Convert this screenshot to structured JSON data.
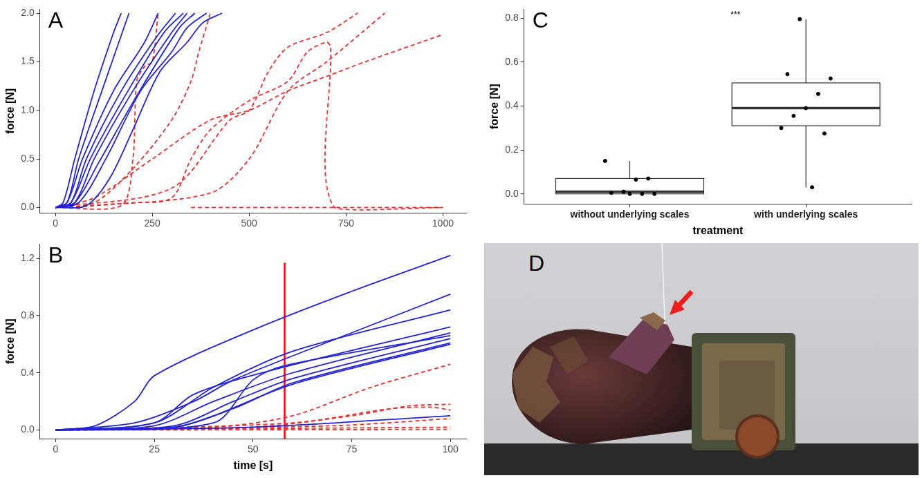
{
  "chart_data": [
    {
      "panel": "A",
      "type": "line",
      "y_label": "force [N]",
      "grid": false,
      "tick_labels": true,
      "xlim": [
        -40,
        1060
      ],
      "xticks": [
        0,
        250,
        500,
        750,
        1000
      ],
      "ylim": [
        -0.055,
        2.04
      ],
      "yticks": [
        {
          "value": 0,
          "label": "0.0"
        },
        0.5,
        {
          "value": 1,
          "label": "1.0"
        },
        1.5,
        {
          "value": 2,
          "label": "2.0"
        }
      ],
      "series": [
        {
          "color": "#2323d6",
          "line_style": "solid",
          "x": [
            0,
            20,
            50,
            100,
            150,
            170
          ],
          "values": [
            0,
            0.05,
            0.5,
            1.2,
            1.8,
            2.0
          ]
        },
        {
          "color": "#2323d6",
          "line_style": "solid",
          "x": [
            0,
            30,
            60,
            120,
            190
          ],
          "values": [
            0,
            0.05,
            0.5,
            1.2,
            2.0
          ]
        },
        {
          "color": "#2323d6",
          "line_style": "solid",
          "x": [
            0,
            30,
            70,
            150,
            230,
            265
          ],
          "values": [
            0,
            0.05,
            0.5,
            1.2,
            1.7,
            2.0
          ]
        },
        {
          "color": "#2323d6",
          "line_style": "solid",
          "x": [
            0,
            40,
            80,
            170,
            260,
            310
          ],
          "values": [
            0,
            0.05,
            0.5,
            1.2,
            1.75,
            2.0
          ]
        },
        {
          "color": "#2323d6",
          "line_style": "solid",
          "x": [
            0,
            40,
            90,
            180,
            280,
            330
          ],
          "values": [
            0,
            0.05,
            0.5,
            1.15,
            1.8,
            2.0
          ]
        },
        {
          "color": "#2323d6",
          "line_style": "solid",
          "x": [
            0,
            50,
            100,
            200,
            300,
            340
          ],
          "values": [
            0,
            0.05,
            0.5,
            1.2,
            1.8,
            2.0
          ]
        },
        {
          "color": "#2323d6",
          "line_style": "solid",
          "x": [
            0,
            50,
            110,
            210,
            320,
            360
          ],
          "values": [
            0,
            0.05,
            0.45,
            1.15,
            1.85,
            2.0
          ]
        },
        {
          "color": "#2323d6",
          "line_style": "solid",
          "x": [
            0,
            60,
            130,
            220,
            300,
            340,
            390
          ],
          "values": [
            0,
            0.05,
            0.5,
            1.2,
            1.6,
            1.85,
            2.0
          ]
        },
        {
          "color": "#2323d6",
          "line_style": "solid",
          "x": [
            0,
            80,
            140,
            200,
            270,
            340,
            380,
            430
          ],
          "values": [
            0,
            0.02,
            0.3,
            0.8,
            1.4,
            1.7,
            1.9,
            2.0
          ]
        },
        {
          "color": "#e8312f",
          "line_style": "dashed",
          "x": [
            0,
            170,
            200,
            210,
            230,
            250,
            265
          ],
          "values": [
            0,
            0.02,
            0.5,
            1.3,
            1.45,
            1.5,
            2.0
          ]
        },
        {
          "color": "#e8312f",
          "line_style": "dashed",
          "x": [
            0,
            100,
            200,
            300,
            350,
            370,
            400
          ],
          "values": [
            0,
            0.05,
            0.4,
            0.9,
            1.3,
            1.6,
            2.0
          ]
        },
        {
          "color": "#e8312f",
          "line_style": "dashed",
          "x": [
            0,
            100,
            250,
            400,
            500,
            600,
            700,
            800,
            1000
          ],
          "values": [
            0,
            0.1,
            0.5,
            0.9,
            1.0,
            1.2,
            1.35,
            1.5,
            1.78
          ]
        },
        {
          "color": "#e8312f",
          "line_style": "dashed",
          "x": [
            0,
            200,
            300,
            350,
            400,
            500,
            600,
            650,
            700,
            710,
            720,
            1000
          ],
          "values": [
            0,
            0.05,
            0.1,
            0.5,
            0.8,
            1.1,
            1.3,
            1.6,
            1.7,
            1.65,
            0,
            0
          ]
        },
        {
          "color": "#e8312f",
          "line_style": "dashed",
          "x": [
            0,
            300,
            450,
            500,
            550,
            600,
            700,
            780
          ],
          "values": [
            0,
            0.2,
            0.9,
            1.0,
            1.4,
            1.65,
            1.8,
            2.0
          ]
        },
        {
          "color": "#e8312f",
          "line_style": "dashed",
          "x": [
            0,
            100,
            400,
            500,
            600,
            700,
            850
          ],
          "values": [
            0,
            0.02,
            0.15,
            0.5,
            1.2,
            1.5,
            2.0
          ]
        },
        {
          "color": "#e8312f",
          "line_style": "dashed",
          "x": [
            350,
            1000
          ],
          "values": [
            0,
            0
          ]
        }
      ]
    },
    {
      "panel": "B",
      "type": "line",
      "x_label": "time [s]",
      "y_label": "force [N]",
      "grid": false,
      "tick_labels": true,
      "xlim": [
        -4,
        104
      ],
      "xticks": [
        0,
        25,
        50,
        75,
        100
      ],
      "ylim": [
        -0.06,
        1.3
      ],
      "yticks": [
        {
          "value": 0,
          "label": "0.0"
        },
        0.4,
        0.8,
        1.2
      ],
      "vline": {
        "x": 58,
        "ylim": [
          -0.06,
          1.17
        ],
        "color": "#ff0000",
        "line_style": "solid"
      },
      "series": [
        {
          "color": "#2323d6",
          "line_style": "solid",
          "x": [
            0,
            10,
            20,
            25,
            50,
            75,
            100
          ],
          "values": [
            0,
            0.03,
            0.2,
            0.38,
            0.7,
            0.97,
            1.22
          ]
        },
        {
          "color": "#2323d6",
          "line_style": "solid",
          "x": [
            0,
            20,
            35,
            45,
            75,
            100
          ],
          "values": [
            0,
            0.05,
            0.2,
            0.35,
            0.68,
            0.95
          ]
        },
        {
          "color": "#2323d6",
          "line_style": "solid",
          "x": [
            0,
            25,
            40,
            60,
            100
          ],
          "values": [
            0,
            0.05,
            0.3,
            0.55,
            0.84
          ]
        },
        {
          "color": "#2323d6",
          "line_style": "solid",
          "x": [
            0,
            25,
            35,
            55,
            100
          ],
          "values": [
            0,
            0.05,
            0.25,
            0.42,
            0.72
          ]
        },
        {
          "color": "#2323d6",
          "line_style": "solid",
          "x": [
            0,
            25,
            40,
            60,
            100
          ],
          "values": [
            0,
            0.03,
            0.2,
            0.4,
            0.68
          ]
        },
        {
          "color": "#2323d6",
          "line_style": "solid",
          "x": [
            0,
            30,
            45,
            60,
            100
          ],
          "values": [
            0,
            0.03,
            0.2,
            0.36,
            0.64
          ]
        },
        {
          "color": "#2323d6",
          "line_style": "solid",
          "x": [
            0,
            30,
            45,
            60,
            100
          ],
          "values": [
            0,
            0.02,
            0.15,
            0.33,
            0.61
          ]
        },
        {
          "color": "#2323d6",
          "line_style": "solid",
          "x": [
            0,
            30,
            40,
            60,
            100
          ],
          "values": [
            0,
            0.02,
            0.1,
            0.32,
            0.6
          ]
        },
        {
          "color": "#2323d6",
          "line_style": "solid",
          "x": [
            0,
            40,
            50,
            58,
            100
          ],
          "values": [
            0,
            0.05,
            0.35,
            0.45,
            0.66
          ]
        },
        {
          "color": "#2323d6",
          "line_style": "solid",
          "x": [
            0,
            50,
            100
          ],
          "values": [
            0,
            0.02,
            0.1
          ]
        },
        {
          "color": "#e8312f",
          "line_style": "dashed",
          "x": [
            0,
            40,
            60,
            80,
            100
          ],
          "values": [
            0,
            0.02,
            0.1,
            0.3,
            0.46
          ]
        },
        {
          "color": "#e8312f",
          "line_style": "dashed",
          "x": [
            0,
            50,
            75,
            90,
            100
          ],
          "values": [
            0,
            0.02,
            0.1,
            0.17,
            0.18
          ]
        },
        {
          "color": "#e8312f",
          "line_style": "dashed",
          "x": [
            0,
            60,
            85,
            95,
            100
          ],
          "values": [
            0,
            0.05,
            0.15,
            0.16,
            0.14
          ]
        },
        {
          "color": "#e8312f",
          "line_style": "dashed",
          "x": [
            0,
            70,
            100
          ],
          "values": [
            0,
            0.03,
            0.08
          ]
        },
        {
          "color": "#e8312f",
          "line_style": "dashed",
          "x": [
            0,
            100
          ],
          "values": [
            0,
            0.02
          ]
        },
        {
          "color": "#e8312f",
          "line_style": "dashed",
          "x": [
            0,
            100
          ],
          "values": [
            0,
            0.005
          ]
        }
      ]
    },
    {
      "panel": "C",
      "type": "box",
      "x_label": "treatment",
      "y_label": "force [N]",
      "grid": false,
      "tick_labels": true,
      "categories": [
        "without underlying scales",
        "with underlying scales"
      ],
      "ylim": [
        -0.045,
        0.84
      ],
      "yticks": [
        {
          "value": 0,
          "label": "0.0"
        },
        0.2,
        0.4,
        0.6,
        0.8
      ],
      "color": "#000000",
      "annotation": {
        "text": "***",
        "x": 1.6,
        "y": 0.815
      },
      "groups": [
        {
          "min": 0,
          "q1": 0,
          "median": 0.01,
          "q3": 0.07,
          "max": 0.15,
          "points": [
            0.15,
            0.07,
            0.065,
            0.01,
            0.005,
            0,
            0,
            0
          ]
        },
        {
          "min": 0.03,
          "q1": 0.31,
          "median": 0.39,
          "q3": 0.505,
          "max": 0.795,
          "points": [
            0.795,
            0.545,
            0.525,
            0.455,
            0.39,
            0.355,
            0.3,
            0.275,
            0.03
          ]
        }
      ]
    }
  ],
  "photo": {
    "panel": "D"
  }
}
